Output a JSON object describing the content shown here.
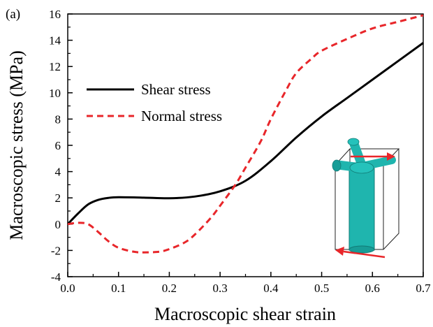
{
  "chart_data": {
    "type": "line",
    "panel_label": "(a)",
    "xlabel": "Macroscopic shear strain",
    "ylabel": "Macroscopic stress (MPa)",
    "xlim": [
      0.0,
      0.7
    ],
    "ylim": [
      -4,
      16
    ],
    "xticks": [
      "0.0",
      "0.1",
      "0.2",
      "0.3",
      "0.4",
      "0.5",
      "0.6",
      "0.7"
    ],
    "yticks": [
      "-4",
      "-2",
      "0",
      "2",
      "4",
      "6",
      "8",
      "10",
      "12",
      "14",
      "16"
    ],
    "grid": false,
    "legend_position": "upper-left",
    "series": [
      {
        "name": "Shear stress",
        "color": "#000000",
        "style": "solid",
        "x": [
          0.0,
          0.02,
          0.04,
          0.06,
          0.08,
          0.1,
          0.15,
          0.2,
          0.25,
          0.3,
          0.35,
          0.4,
          0.45,
          0.5,
          0.55,
          0.6,
          0.65,
          0.7
        ],
        "y": [
          0.0,
          0.8,
          1.5,
          1.85,
          2.0,
          2.05,
          2.02,
          1.97,
          2.1,
          2.5,
          3.3,
          4.8,
          6.6,
          8.2,
          9.6,
          11.0,
          12.4,
          13.8
        ]
      },
      {
        "name": "Normal stress",
        "color": "#e8262a",
        "style": "dashed",
        "x": [
          0.0,
          0.02,
          0.04,
          0.06,
          0.08,
          0.1,
          0.13,
          0.15,
          0.18,
          0.2,
          0.23,
          0.25,
          0.28,
          0.3,
          0.33,
          0.35,
          0.38,
          0.4,
          0.43,
          0.45,
          0.48,
          0.5,
          0.55,
          0.6,
          0.65,
          0.7
        ],
        "y": [
          0.0,
          0.1,
          0.0,
          -0.6,
          -1.3,
          -1.8,
          -2.1,
          -2.15,
          -2.1,
          -1.9,
          -1.4,
          -0.8,
          0.4,
          1.4,
          3.0,
          4.3,
          6.3,
          8.0,
          10.2,
          11.5,
          12.6,
          13.2,
          14.1,
          14.9,
          15.4,
          15.9
        ]
      }
    ]
  },
  "inset": {
    "description_icon": "strut-unit-cell-icon",
    "strut_color": "#1fb5ae",
    "arrow_color": "#e8262a"
  }
}
